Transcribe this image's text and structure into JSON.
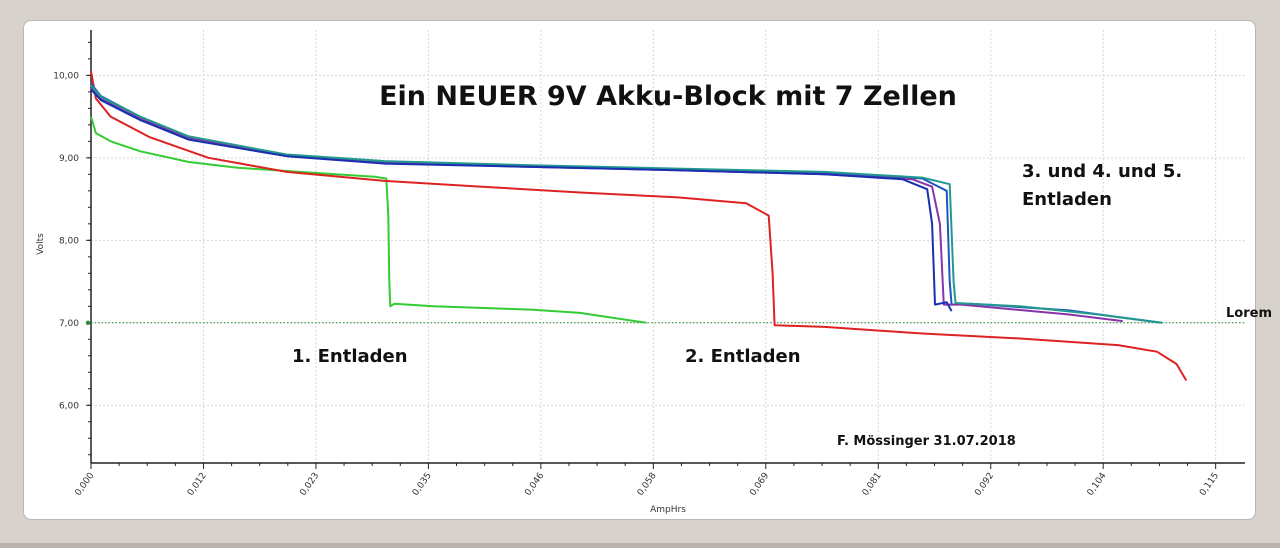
{
  "chart_data": {
    "type": "line",
    "title": "Ein NEUER 9V Akku-Block mit 7 Zellen",
    "xlabel": "AmpHrs",
    "ylabel": "Volts",
    "xlim": [
      0,
      0.118
    ],
    "ylim": [
      5.3,
      10.55
    ],
    "x_ticks": [
      "0,000",
      "0,012",
      "0,023",
      "0,035",
      "0,046",
      "0,058",
      "0,069",
      "0,081",
      "0,092",
      "0,104",
      "0,115"
    ],
    "x_tick_values": [
      0,
      0.0115,
      0.023,
      0.0345,
      0.046,
      0.0575,
      0.069,
      0.0805,
      0.092,
      0.1035,
      0.115
    ],
    "y_ticks": [
      "6,00",
      "7,00",
      "8,00",
      "9,00",
      "10,00"
    ],
    "y_tick_values": [
      6,
      7,
      8,
      9,
      10
    ],
    "grid": true,
    "reference_line": {
      "y": 7.0,
      "label": "Lorem",
      "color": "#2e8b2e"
    },
    "annotations": [
      {
        "text": "1. Entladen",
        "x": 0.0285,
        "y": 6.8
      },
      {
        "text": "2. Entladen",
        "x": 0.0705,
        "y": 6.8
      },
      {
        "text": "3. und 4. und 5.",
        "x": 0.1025,
        "y": 8.85
      },
      {
        "text": "Entladen",
        "x": 0.1025,
        "y": 8.53
      }
    ],
    "credit": "F. Mössinger 31.07.2018",
    "series": [
      {
        "color": "#33cc33",
        "points": [
          [
            0,
            9.5
          ],
          [
            0.0005,
            9.3
          ],
          [
            0.002,
            9.2
          ],
          [
            0.005,
            9.08
          ],
          [
            0.01,
            8.95
          ],
          [
            0.015,
            8.88
          ],
          [
            0.02,
            8.84
          ],
          [
            0.025,
            8.8
          ],
          [
            0.029,
            8.77
          ],
          [
            0.0302,
            8.75
          ],
          [
            0.0304,
            8.3
          ],
          [
            0.0305,
            7.5
          ],
          [
            0.0306,
            7.2
          ],
          [
            0.031,
            7.23
          ],
          [
            0.035,
            7.2
          ],
          [
            0.045,
            7.16
          ],
          [
            0.05,
            7.12
          ],
          [
            0.054,
            7.05
          ],
          [
            0.0568,
            7.0
          ]
        ]
      },
      {
        "color": "#dd2222",
        "points": [
          [
            0,
            10.05
          ],
          [
            0.0005,
            9.72
          ],
          [
            0.002,
            9.5
          ],
          [
            0.006,
            9.25
          ],
          [
            0.012,
            9.0
          ],
          [
            0.02,
            8.83
          ],
          [
            0.03,
            8.72
          ],
          [
            0.04,
            8.65
          ],
          [
            0.05,
            8.58
          ],
          [
            0.06,
            8.52
          ],
          [
            0.067,
            8.45
          ],
          [
            0.0693,
            8.3
          ],
          [
            0.0697,
            7.6
          ],
          [
            0.0699,
            6.97
          ],
          [
            0.075,
            6.95
          ],
          [
            0.085,
            6.87
          ],
          [
            0.095,
            6.81
          ],
          [
            0.105,
            6.73
          ],
          [
            0.109,
            6.65
          ],
          [
            0.111,
            6.5
          ],
          [
            0.112,
            6.3
          ]
        ]
      },
      {
        "color": "#2255bb",
        "points": [
          [
            0,
            9.9
          ],
          [
            0.001,
            9.75
          ],
          [
            0.005,
            9.5
          ],
          [
            0.01,
            9.25
          ],
          [
            0.02,
            9.03
          ],
          [
            0.03,
            8.95
          ],
          [
            0.045,
            8.9
          ],
          [
            0.06,
            8.86
          ],
          [
            0.075,
            8.82
          ],
          [
            0.085,
            8.75
          ],
          [
            0.0875,
            8.6
          ],
          [
            0.0878,
            7.5
          ],
          [
            0.088,
            7.22
          ],
          [
            0.09,
            7.23
          ],
          [
            0.1,
            7.15
          ],
          [
            0.105,
            7.07
          ],
          [
            0.1095,
            7.0
          ]
        ]
      },
      {
        "color": "#8833aa",
        "points": [
          [
            0,
            9.85
          ],
          [
            0.001,
            9.72
          ],
          [
            0.005,
            9.48
          ],
          [
            0.01,
            9.24
          ],
          [
            0.02,
            9.03
          ],
          [
            0.03,
            8.94
          ],
          [
            0.045,
            8.89
          ],
          [
            0.06,
            8.85
          ],
          [
            0.075,
            8.8
          ],
          [
            0.084,
            8.74
          ],
          [
            0.086,
            8.65
          ],
          [
            0.0868,
            8.2
          ],
          [
            0.0872,
            7.22
          ],
          [
            0.089,
            7.22
          ],
          [
            0.1,
            7.1
          ],
          [
            0.1055,
            7.02
          ]
        ]
      },
      {
        "color": "#22998f",
        "points": [
          [
            0,
            9.88
          ],
          [
            0.001,
            9.74
          ],
          [
            0.005,
            9.5
          ],
          [
            0.01,
            9.26
          ],
          [
            0.02,
            9.04
          ],
          [
            0.03,
            8.96
          ],
          [
            0.045,
            8.91
          ],
          [
            0.06,
            8.87
          ],
          [
            0.075,
            8.83
          ],
          [
            0.085,
            8.76
          ],
          [
            0.0878,
            8.68
          ],
          [
            0.0882,
            7.5
          ],
          [
            0.0884,
            7.24
          ],
          [
            0.095,
            7.2
          ],
          [
            0.103,
            7.1
          ],
          [
            0.1095,
            7.0
          ]
        ]
      },
      {
        "color": "#1a2fb0",
        "points": [
          [
            0,
            9.83
          ],
          [
            0.001,
            9.7
          ],
          [
            0.005,
            9.46
          ],
          [
            0.01,
            9.22
          ],
          [
            0.02,
            9.02
          ],
          [
            0.03,
            8.93
          ],
          [
            0.045,
            8.89
          ],
          [
            0.06,
            8.85
          ],
          [
            0.075,
            8.8
          ],
          [
            0.083,
            8.74
          ],
          [
            0.0855,
            8.62
          ],
          [
            0.086,
            8.2
          ],
          [
            0.0863,
            7.22
          ],
          [
            0.0875,
            7.25
          ],
          [
            0.088,
            7.14
          ]
        ]
      }
    ]
  }
}
